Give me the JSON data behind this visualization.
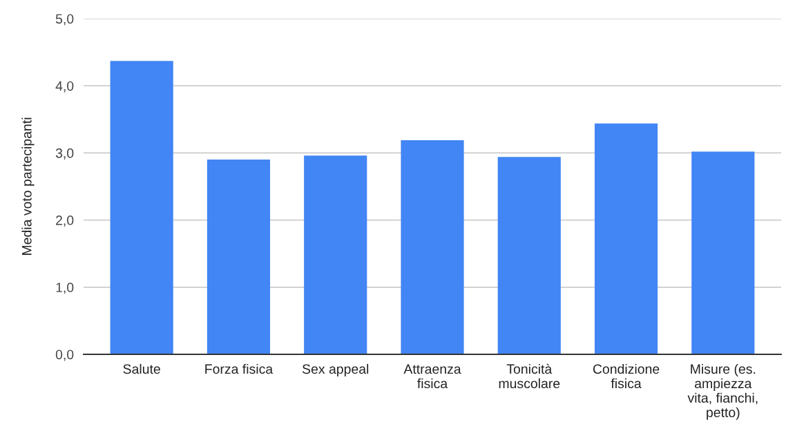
{
  "chart_data": {
    "type": "bar",
    "ylabel": "Media voto partecipanti",
    "categories": [
      "Salute",
      "Forza fisica",
      "Sex appeal",
      "Attraenza\nfisica",
      "Tonicità\nmuscolare",
      "Condizione\nfisica",
      "Misure (es.\nampiezza\nvita, fianchi,\npetto)"
    ],
    "values": [
      4.37,
      2.9,
      2.96,
      3.19,
      2.94,
      3.44,
      3.02
    ],
    "color": "#4285f4",
    "ylim": [
      0,
      5
    ],
    "yticks": [
      {
        "value": 0,
        "label": "0,0"
      },
      {
        "value": 1,
        "label": "1,0"
      },
      {
        "value": 2,
        "label": "2,0"
      },
      {
        "value": 3,
        "label": "3,0"
      },
      {
        "value": 4,
        "label": "4,0"
      },
      {
        "value": 5,
        "label": "5,0"
      }
    ],
    "grid": "y",
    "legend": false
  }
}
